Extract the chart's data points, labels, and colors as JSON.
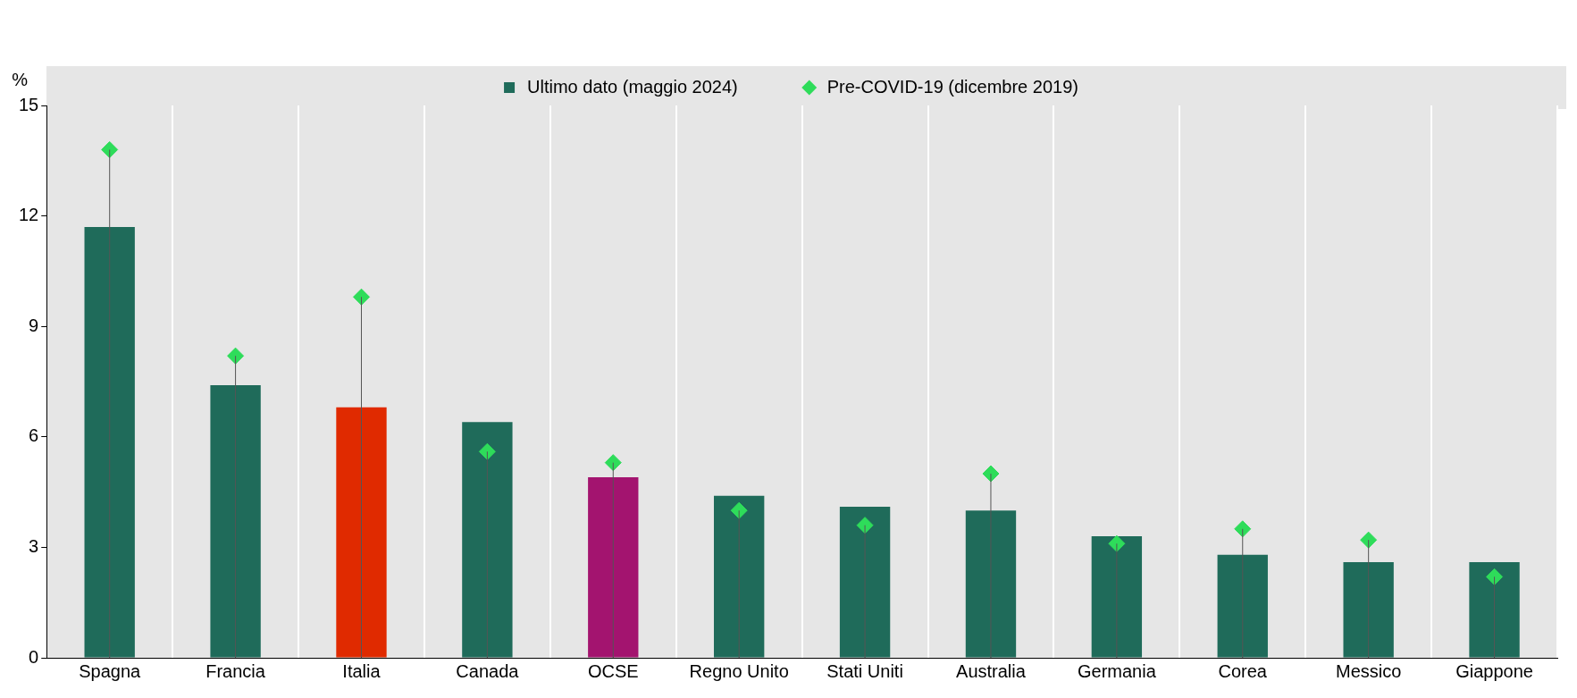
{
  "chart_data": {
    "type": "bar",
    "ylabel": "%",
    "categories": [
      "Spagna",
      "Francia",
      "Italia",
      "Canada",
      "OCSE",
      "Regno Unito",
      "Stati Uniti",
      "Australia",
      "Germania",
      "Corea",
      "Messico",
      "Giappone"
    ],
    "series": [
      {
        "name": "Ultimo dato (maggio 2024)",
        "color": "#1f6b5a",
        "colors": [
          "#1f6b5a",
          "#1f6b5a",
          "#e02a00",
          "#1f6b5a",
          "#a3146f",
          "#1f6b5a",
          "#1f6b5a",
          "#1f6b5a",
          "#1f6b5a",
          "#1f6b5a",
          "#1f6b5a",
          "#1f6b5a"
        ],
        "values": [
          11.7,
          7.4,
          6.8,
          6.4,
          4.9,
          4.4,
          4.1,
          4.0,
          3.3,
          2.8,
          2.6,
          2.6
        ]
      },
      {
        "name": "Pre-COVID-19 (dicembre 2019)",
        "type": "scatter",
        "color": "#2edc5a",
        "x": [
          "Spagna",
          "Francia",
          "Italia",
          "Canada",
          "OCSE",
          "Regno Unito",
          "Stati Uniti",
          "Australia",
          "Germania",
          "Corea",
          "Messico",
          "Giappone"
        ],
        "values": [
          13.8,
          8.2,
          9.8,
          5.6,
          5.3,
          4.0,
          3.6,
          5.0,
          3.1,
          3.5,
          3.2,
          2.2
        ]
      }
    ],
    "ylim": [
      0,
      15
    ],
    "yticks": [
      0,
      3,
      6,
      9,
      12,
      15
    ],
    "grid": "x",
    "legend": "top",
    "marker": "diamond"
  }
}
